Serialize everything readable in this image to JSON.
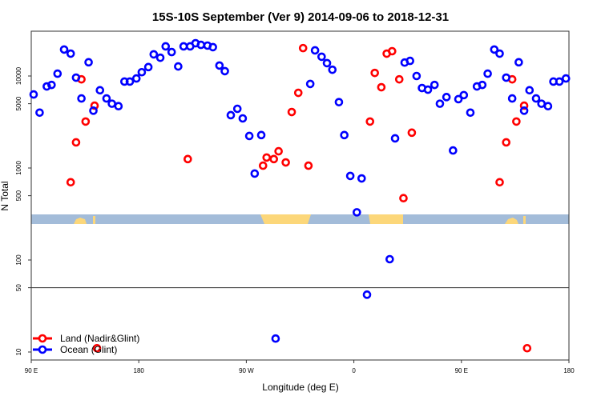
{
  "chart_data": {
    "type": "scatter",
    "title": "15S-10S September (Ver 9)   2014-09-06 to 2018-12-31",
    "xlabel": "Longitude (deg E)",
    "ylabel": "N Total",
    "xlim": [
      90,
      540
    ],
    "ylim": [
      8,
      30000
    ],
    "yscale": "log",
    "x_ticks": [
      {
        "value": 90,
        "label": "90 E"
      },
      {
        "value": 180,
        "label": "180"
      },
      {
        "value": 270,
        "label": "90 W"
      },
      {
        "value": 360,
        "label": "0"
      },
      {
        "value": 450,
        "label": "90 E"
      },
      {
        "value": 540,
        "label": "180"
      }
    ],
    "y_ticks": [
      {
        "value": 10,
        "label": "10"
      },
      {
        "value": 50,
        "label": "50"
      },
      {
        "value": 100,
        "label": "100"
      },
      {
        "value": 500,
        "label": "500"
      },
      {
        "value": 1000,
        "label": "1000"
      },
      {
        "value": 5000,
        "label": "5000"
      },
      {
        "value": 10000,
        "label": "10000"
      }
    ],
    "reference_line": 50,
    "legend_position": "bottom-left",
    "series": [
      {
        "name": "Land (Nadir&Glint)",
        "color": "#ff0000",
        "points": [
          [
            123,
            700
          ],
          [
            127.5,
            1900
          ],
          [
            132,
            9200
          ],
          [
            135.5,
            3200
          ],
          [
            143,
            4760
          ],
          [
            145,
            11
          ],
          [
            221,
            1250
          ],
          [
            284,
            1060
          ],
          [
            287,
            1300
          ],
          [
            293,
            1250
          ],
          [
            297,
            1520
          ],
          [
            303,
            1150
          ],
          [
            308,
            4060
          ],
          [
            313.5,
            6560
          ],
          [
            317.5,
            20100
          ],
          [
            322,
            1060
          ],
          [
            373.5,
            3200
          ],
          [
            377.5,
            10800
          ],
          [
            383,
            7550
          ],
          [
            387.5,
            17500
          ],
          [
            392,
            18600
          ],
          [
            398,
            9200
          ],
          [
            401.5,
            470
          ],
          [
            408.5,
            2420
          ],
          [
            482,
            700
          ],
          [
            487.5,
            1900
          ],
          [
            492.5,
            9200
          ],
          [
            496,
            3200
          ],
          [
            502.5,
            4760
          ],
          [
            505,
            11
          ]
        ]
      },
      {
        "name": "Ocean (Glint)",
        "color": "#0000ff",
        "points": [
          [
            92,
            6300
          ],
          [
            97,
            4000
          ],
          [
            103,
            7700
          ],
          [
            107,
            8000
          ],
          [
            112,
            10600
          ],
          [
            117.5,
            19400
          ],
          [
            123,
            17500
          ],
          [
            127.5,
            9600
          ],
          [
            132,
            5700
          ],
          [
            138,
            14100
          ],
          [
            142,
            4200
          ],
          [
            147.5,
            7000
          ],
          [
            153,
            5700
          ],
          [
            157.5,
            5000
          ],
          [
            163,
            4700
          ],
          [
            168,
            8700
          ],
          [
            172.5,
            8700
          ],
          [
            178,
            9400
          ],
          [
            182.5,
            11000
          ],
          [
            188,
            12500
          ],
          [
            192.5,
            17200
          ],
          [
            198,
            15800
          ],
          [
            202.5,
            21000
          ],
          [
            207.5,
            18200
          ],
          [
            213,
            12700
          ],
          [
            217.5,
            21000
          ],
          [
            223,
            21000
          ],
          [
            227.5,
            22700
          ],
          [
            232,
            21800
          ],
          [
            237.5,
            21400
          ],
          [
            242,
            20600
          ],
          [
            247.5,
            13000
          ],
          [
            252,
            11300
          ],
          [
            257,
            3750
          ],
          [
            262.5,
            4400
          ],
          [
            267,
            3460
          ],
          [
            272.5,
            2230
          ],
          [
            277,
            870
          ],
          [
            282.5,
            2280
          ],
          [
            294.5,
            14
          ],
          [
            323.5,
            8200
          ],
          [
            327.5,
            19000
          ],
          [
            333,
            16200
          ],
          [
            337.5,
            13800
          ],
          [
            342,
            11700
          ],
          [
            347.5,
            5200
          ],
          [
            352,
            2280
          ],
          [
            357,
            820
          ],
          [
            362.5,
            330
          ],
          [
            366.5,
            770
          ],
          [
            371,
            42
          ],
          [
            390,
            102
          ],
          [
            394.5,
            2100
          ],
          [
            402.5,
            14000
          ],
          [
            407,
            14600
          ],
          [
            412.5,
            10000
          ],
          [
            417,
            7400
          ],
          [
            422,
            7100
          ],
          [
            427.5,
            8000
          ],
          [
            432,
            5000
          ],
          [
            437.5,
            5900
          ],
          [
            443,
            1550
          ],
          [
            447.5,
            5600
          ],
          [
            452,
            6200
          ],
          [
            457.5,
            4000
          ],
          [
            463,
            7700
          ],
          [
            467.5,
            8000
          ],
          [
            472,
            10600
          ],
          [
            477.5,
            19400
          ],
          [
            482,
            17500
          ],
          [
            487.5,
            9600
          ],
          [
            492.5,
            5700
          ],
          [
            498,
            14100
          ],
          [
            502.5,
            4200
          ],
          [
            507,
            7000
          ],
          [
            512.5,
            5700
          ],
          [
            517,
            5000
          ],
          [
            522.5,
            4700
          ],
          [
            527,
            8700
          ],
          [
            532,
            8700
          ],
          [
            537.5,
            9400
          ]
        ]
      }
    ]
  }
}
